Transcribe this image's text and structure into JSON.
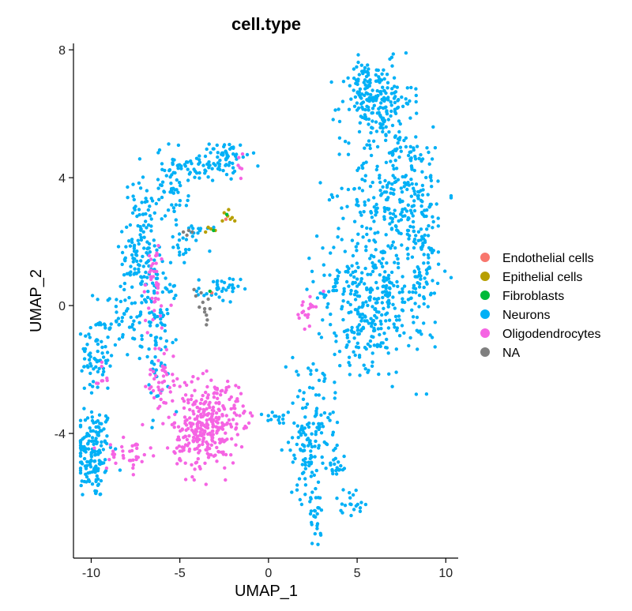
{
  "chart_data": {
    "type": "scatter",
    "title": "cell.type",
    "xlabel": "UMAP_1",
    "ylabel": "UMAP_2",
    "xlim": [
      -11,
      10.7
    ],
    "ylim": [
      -7.9,
      8.2
    ],
    "xticks": [
      -10,
      -5,
      0,
      5,
      10
    ],
    "yticks": [
      -4,
      0,
      4,
      8
    ],
    "grid": false,
    "legend_position": "right",
    "series": [
      {
        "name": "Endothelial cells",
        "color": "#F8766D",
        "points": [
          [
            -3.2,
            0.4
          ],
          [
            -2.4,
            2.7
          ]
        ]
      },
      {
        "name": "Epithelial cells",
        "color": "#B79F00",
        "points": [
          [
            -3.0,
            2.35
          ],
          [
            -3.25,
            2.4
          ],
          [
            -3.55,
            2.3
          ],
          [
            -2.5,
            2.9
          ],
          [
            -2.3,
            2.8
          ],
          [
            -2.15,
            2.7
          ],
          [
            -2.05,
            2.75
          ],
          [
            -1.9,
            2.65
          ],
          [
            -2.6,
            2.65
          ],
          [
            -2.25,
            3.0
          ],
          [
            -3.4,
            2.45
          ]
        ]
      },
      {
        "name": "Fibroblasts",
        "color": "#00BA38",
        "points": [
          [
            -3.1,
            2.35
          ],
          [
            -2.35,
            2.85
          ],
          [
            -3.3,
            0.45
          ]
        ]
      },
      {
        "name": "Neurons",
        "color": "#00B0F6",
        "clusters": [
          {
            "cx": -9.9,
            "cy": -4.6,
            "sx": 0.55,
            "sy": 0.75,
            "n": 150
          },
          {
            "cx": -9.7,
            "cy": -1.6,
            "sx": 0.45,
            "sy": 0.7,
            "n": 70
          },
          {
            "cx": -8.4,
            "cy": -0.4,
            "sx": 0.7,
            "sy": 0.6,
            "n": 50
          },
          {
            "cx": -7.2,
            "cy": 1.8,
            "sx": 0.5,
            "sy": 1.1,
            "n": 140
          },
          {
            "cx": -6.1,
            "cy": -0.8,
            "sx": 0.5,
            "sy": 1.2,
            "n": 90
          },
          {
            "cx": -5.4,
            "cy": 3.8,
            "sx": 0.45,
            "sy": 0.6,
            "n": 60
          },
          {
            "cx": -3.3,
            "cy": 4.4,
            "sx": 0.9,
            "sy": 0.25,
            "n": 60
          },
          {
            "cx": -2.3,
            "cy": 4.8,
            "sx": 0.5,
            "sy": 0.15,
            "n": 30
          },
          {
            "cx": -2.8,
            "cy": 0.5,
            "sx": 0.6,
            "sy": 0.2,
            "n": 35
          },
          {
            "cx": -4.0,
            "cy": 2.3,
            "sx": 0.5,
            "sy": 0.2,
            "n": 15
          },
          {
            "cx": -4.9,
            "cy": 1.8,
            "sx": 0.3,
            "sy": 0.3,
            "n": 12
          },
          {
            "cx": 6.1,
            "cy": 6.4,
            "sx": 1.0,
            "sy": 0.6,
            "n": 190
          },
          {
            "cx": 5.5,
            "cy": 7.0,
            "sx": 0.3,
            "sy": 0.3,
            "n": 25
          },
          {
            "cx": 7.3,
            "cy": 3.6,
            "sx": 1.4,
            "sy": 1.0,
            "n": 260
          },
          {
            "cx": 5.8,
            "cy": 0.4,
            "sx": 1.5,
            "sy": 1.1,
            "n": 330
          },
          {
            "cx": 8.8,
            "cy": 1.2,
            "sx": 0.4,
            "sy": 1.5,
            "n": 80
          },
          {
            "cx": 5.3,
            "cy": -1.0,
            "sx": 0.8,
            "sy": 0.4,
            "n": 40
          },
          {
            "cx": 2.1,
            "cy": -4.3,
            "sx": 0.45,
            "sy": 0.9,
            "n": 100
          },
          {
            "cx": 3.0,
            "cy": -3.2,
            "sx": 0.5,
            "sy": 0.8,
            "n": 40
          },
          {
            "cx": 2.7,
            "cy": -6.6,
            "sx": 0.18,
            "sy": 0.5,
            "n": 25
          },
          {
            "cx": 4.6,
            "cy": -6.1,
            "sx": 0.4,
            "sy": 0.2,
            "n": 20
          },
          {
            "cx": 3.8,
            "cy": -5.0,
            "sx": 0.3,
            "sy": 0.35,
            "n": 20
          },
          {
            "cx": 0.6,
            "cy": -3.5,
            "sx": 0.5,
            "sy": 0.15,
            "n": 15
          }
        ]
      },
      {
        "name": "Oligodendrocytes",
        "color": "#F564E3",
        "clusters": [
          {
            "cx": -3.6,
            "cy": -4.0,
            "sx": 0.9,
            "sy": 0.55,
            "n": 240
          },
          {
            "cx": -3.0,
            "cy": -3.0,
            "sx": 1.1,
            "sy": 0.4,
            "n": 90
          },
          {
            "cx": -6.0,
            "cy": -2.3,
            "sx": 0.4,
            "sy": 0.6,
            "n": 45
          },
          {
            "cx": -6.4,
            "cy": 0.6,
            "sx": 0.35,
            "sy": 0.7,
            "n": 40
          },
          {
            "cx": -7.9,
            "cy": -4.6,
            "sx": 0.6,
            "sy": 0.3,
            "n": 35
          },
          {
            "cx": 2.2,
            "cy": -0.1,
            "sx": 0.25,
            "sy": 0.25,
            "n": 20
          },
          {
            "cx": -1.6,
            "cy": 4.3,
            "sx": 0.1,
            "sy": 0.2,
            "n": 6
          },
          {
            "cx": -9.5,
            "cy": -2.1,
            "sx": 0.2,
            "sy": 0.3,
            "n": 8
          }
        ]
      },
      {
        "name": "NA",
        "color": "#7F7F7F",
        "points": [
          [
            -4.2,
            0.5
          ],
          [
            -4.1,
            0.3
          ],
          [
            -3.7,
            0.1
          ],
          [
            -3.6,
            -0.1
          ],
          [
            -3.5,
            -0.3
          ],
          [
            -3.5,
            -0.6
          ],
          [
            -3.6,
            -0.2
          ],
          [
            -3.4,
            0.2
          ],
          [
            -3.8,
            0.4
          ],
          [
            -3.3,
            -0.1
          ],
          [
            -3.9,
            -0.05
          ],
          [
            -4.8,
            2.3
          ],
          [
            -4.5,
            2.35
          ],
          [
            -4.3,
            2.3
          ],
          [
            -4.6,
            2.2
          ],
          [
            -3.45,
            -0.45
          ]
        ]
      }
    ]
  }
}
